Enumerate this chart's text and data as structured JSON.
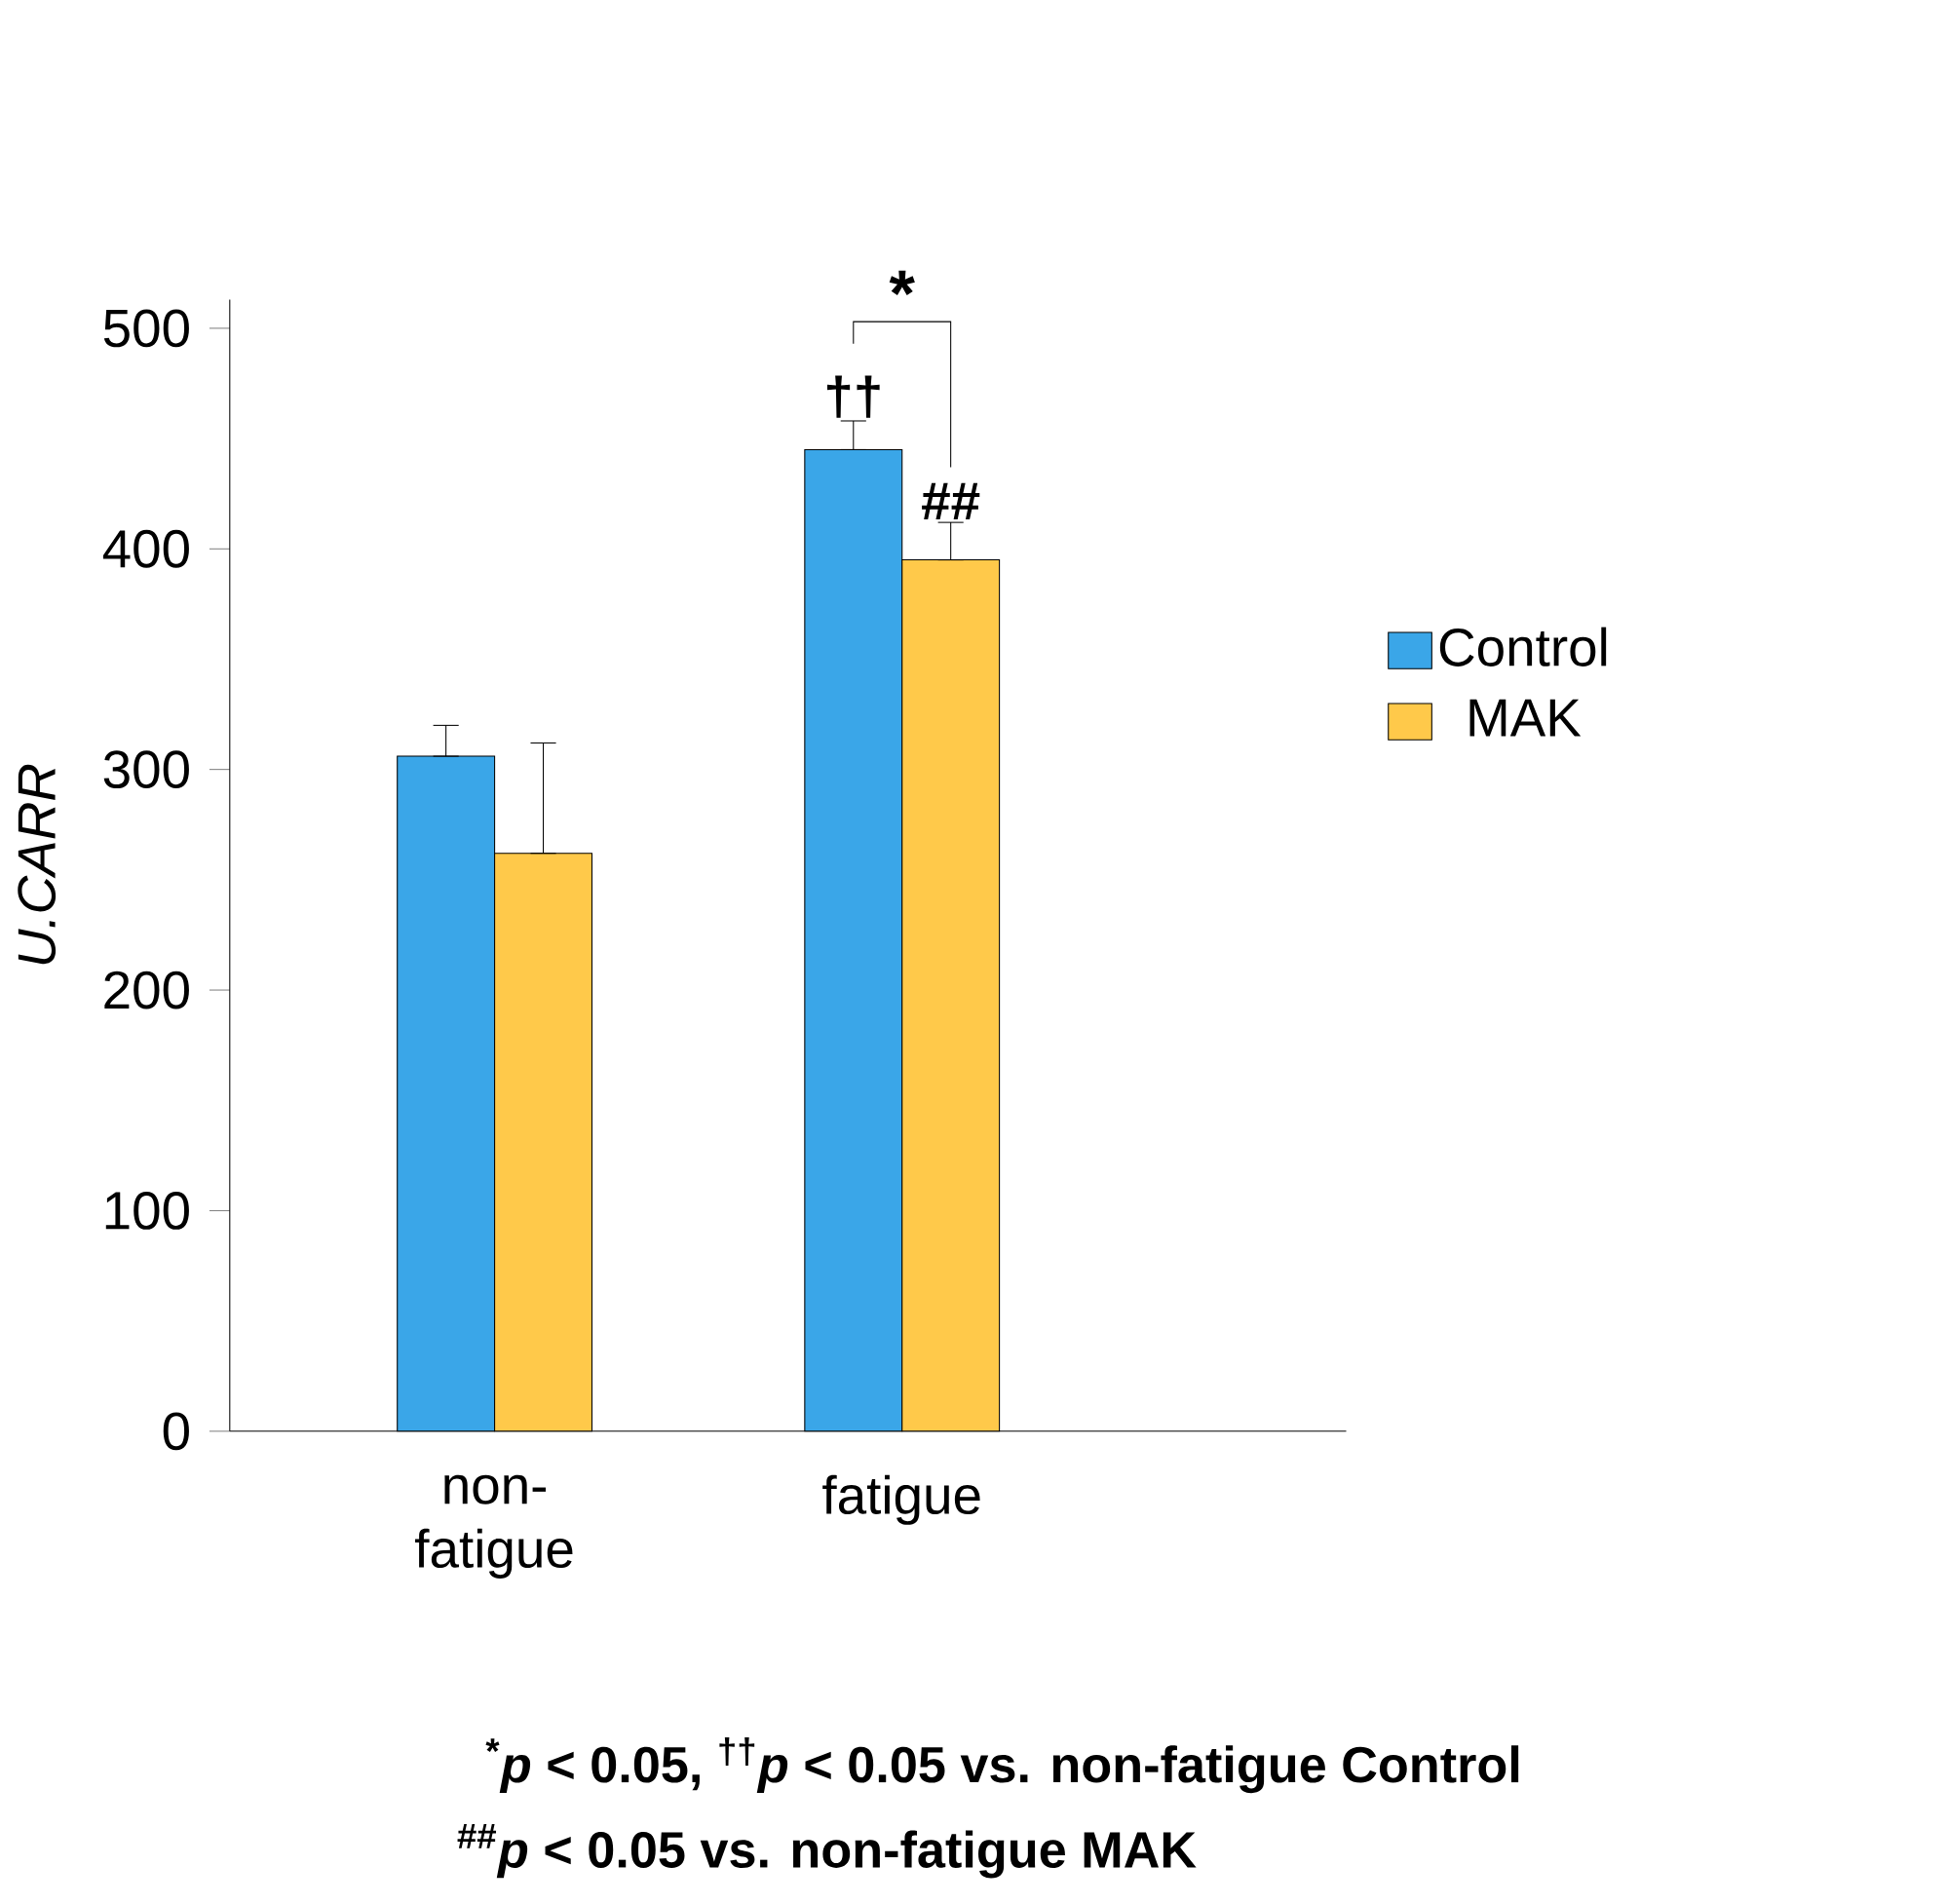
{
  "chart_data": {
    "type": "bar",
    "ylabel": "U.CARR",
    "categories": [
      "non-fatigue",
      "fatigue"
    ],
    "series": [
      {
        "name": "Control",
        "color": "#3aa6e8",
        "values": [
          306,
          445
        ],
        "errors": [
          [
            306,
            320
          ],
          [
            445,
            458
          ]
        ]
      },
      {
        "name": "MAK",
        "color": "#ffc94a",
        "values": [
          262,
          395
        ],
        "errors": [
          [
            262,
            312
          ],
          [
            395,
            412
          ]
        ]
      }
    ],
    "ylim": [
      0,
      513
    ],
    "yticks": [
      0,
      100,
      200,
      300,
      400,
      500
    ],
    "legend": "right",
    "grid": false,
    "annotations": [
      "*",
      "††",
      "##",
      "$^{*}$*p* < 0.05,  $^{††}$*p* < 0.05 vs. non-fatigue Control",
      "$^{##}$*p* < 0.05 vs. non-fatigue MAK"
    ]
  }
}
